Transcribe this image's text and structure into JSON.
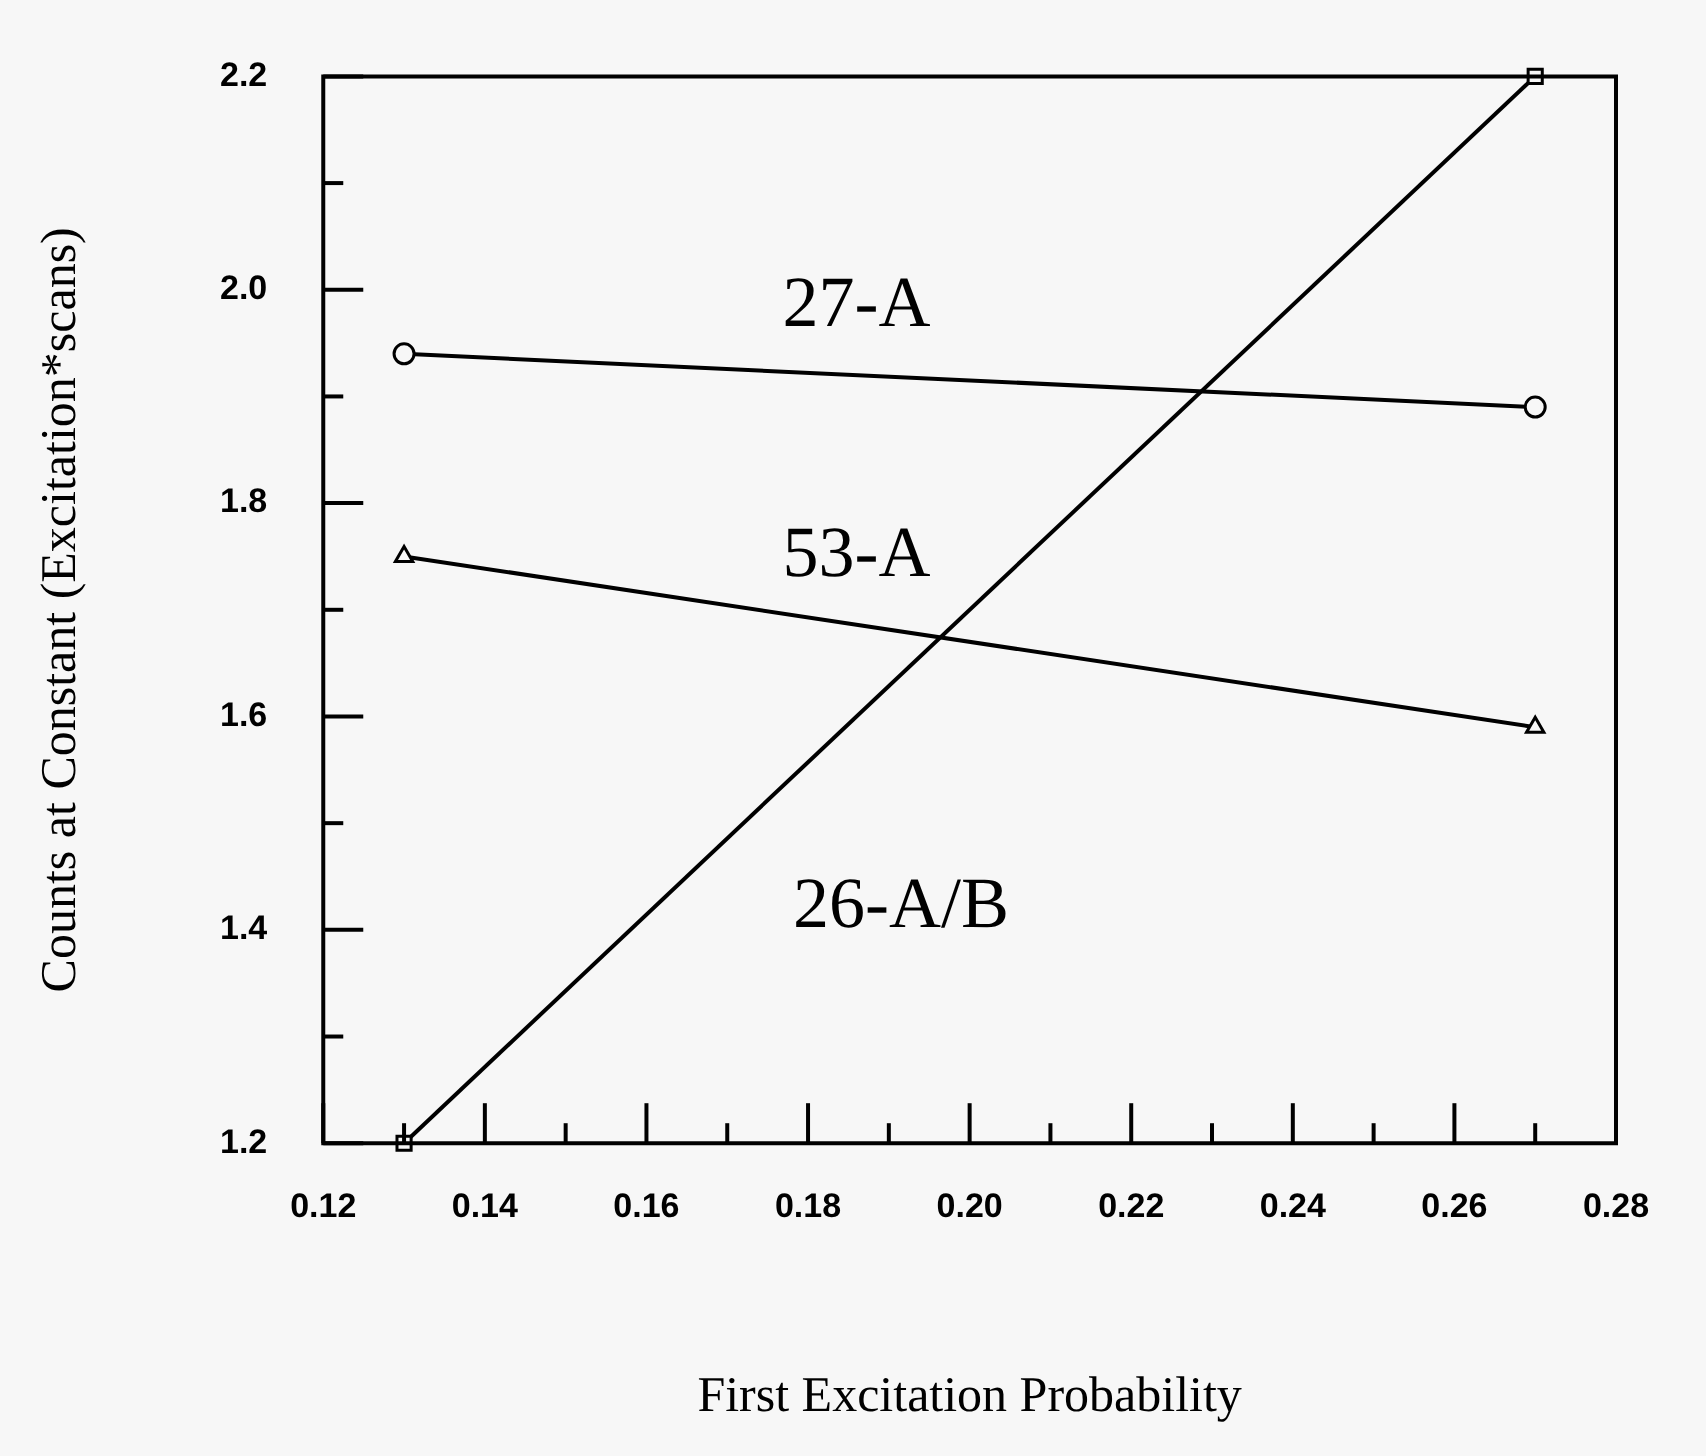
{
  "chart_data": {
    "type": "line",
    "xlabel": "First Excitation Probability",
    "ylabel": "Counts at Constant (Excitation*scans)",
    "xlim": [
      0.12,
      0.28
    ],
    "ylim": [
      1.2,
      2.2
    ],
    "xticks": [
      0.12,
      {
        "value": 0.13,
        "label": null
      },
      0.14,
      {
        "value": 0.15,
        "label": null
      },
      0.16,
      {
        "value": 0.17,
        "label": null
      },
      0.18,
      {
        "value": 0.19,
        "label": null
      },
      "0.20",
      {
        "value": 0.21,
        "label": null
      },
      0.22,
      {
        "value": 0.23,
        "label": null
      },
      0.24,
      {
        "value": 0.25,
        "label": null
      },
      0.26,
      {
        "value": 0.27,
        "label": null
      },
      0.28
    ],
    "yticks": [
      1.2,
      {
        "value": 1.3,
        "label": null
      },
      1.4,
      {
        "value": 1.5,
        "label": null
      },
      1.6,
      {
        "value": 1.7,
        "label": null
      },
      1.8,
      {
        "value": 1.9,
        "label": null
      },
      {
        "value": 2.0,
        "label": "2.0"
      },
      {
        "value": 2.1,
        "label": null
      },
      2.2
    ],
    "grid": false,
    "legend": false,
    "line_style": "solid",
    "x": [
      0.13,
      0.27
    ],
    "series": [
      {
        "name": "27-A",
        "color": "#000000",
        "marker": "circle",
        "values": [
          1.94,
          1.89
        ]
      },
      {
        "name": "53-A",
        "color": "#000000",
        "marker": "triangle",
        "values": [
          1.75,
          1.59
        ]
      },
      {
        "name": "26-A/B",
        "color": "#000000",
        "marker": "square",
        "values": [
          1.2,
          2.2
        ]
      }
    ]
  }
}
